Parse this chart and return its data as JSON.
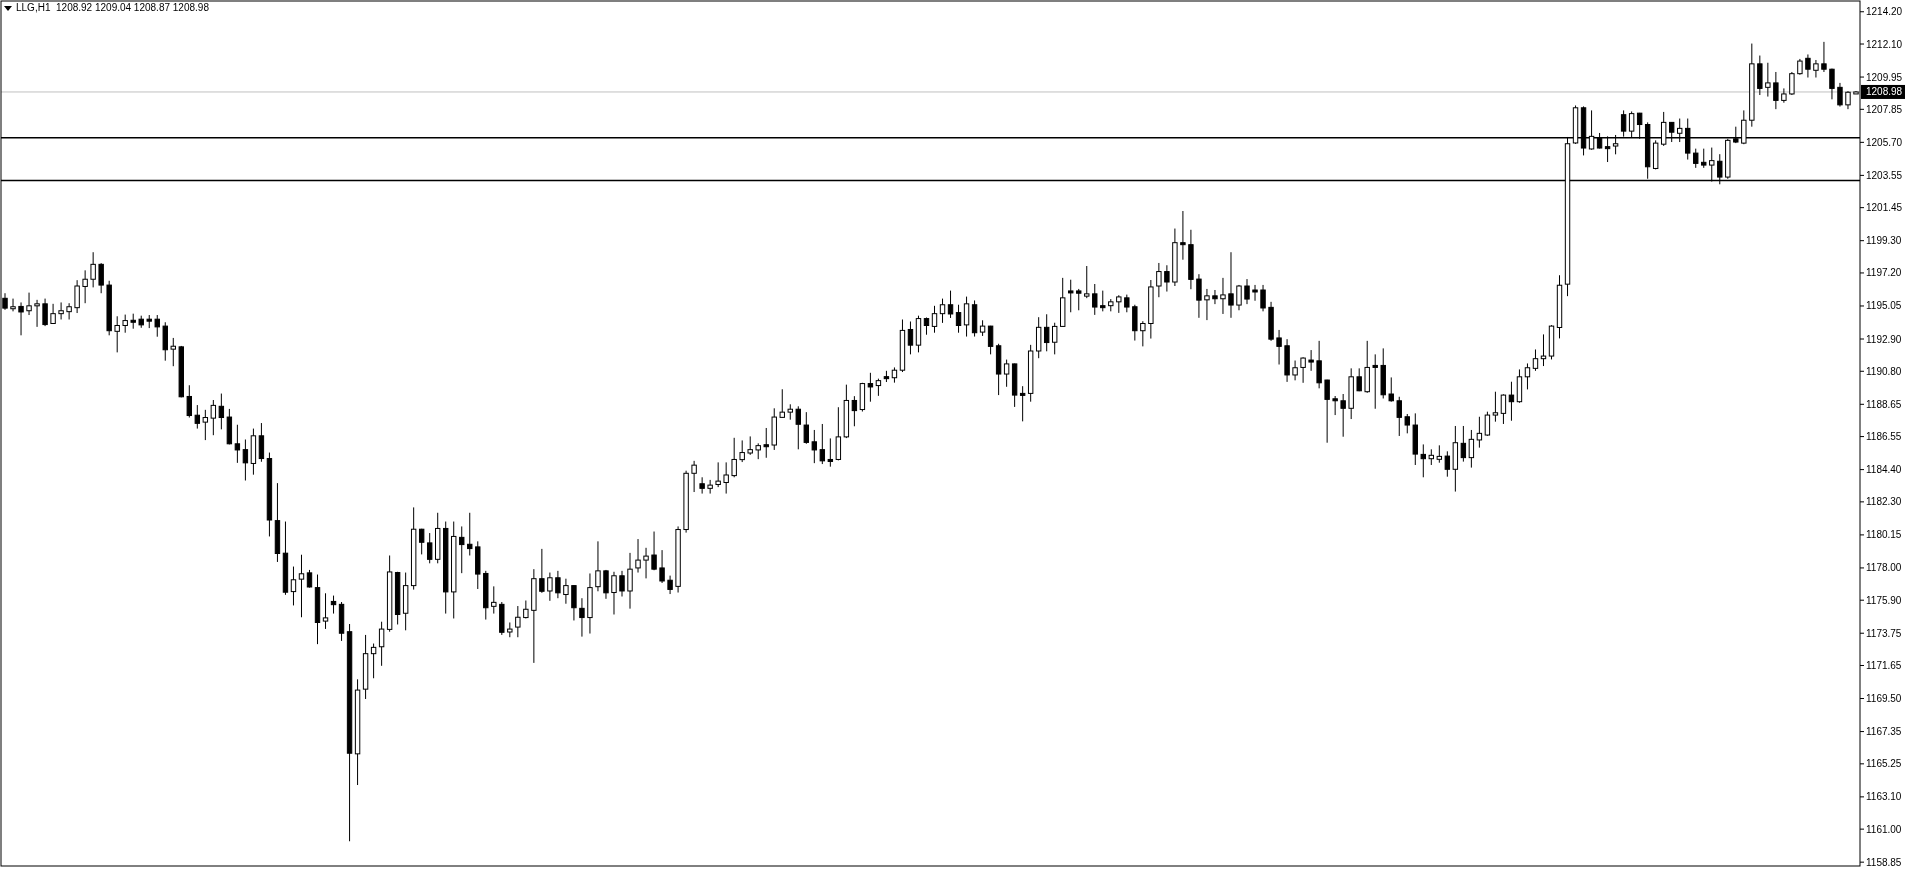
{
  "chart_data": {
    "type": "candlestick",
    "title": "LLG,H1  1208.92 1209.04 1208.87 1208.98",
    "color": "#000000",
    "categories": [
      null,
      null,
      null,
      null,
      null,
      null,
      null,
      null,
      null,
      null,
      null,
      null,
      null,
      null,
      null,
      null,
      null,
      null,
      null,
      null,
      null,
      null,
      null,
      null,
      null,
      null,
      null,
      null,
      null,
      null,
      null,
      null,
      null,
      null,
      null,
      null,
      null,
      null,
      null,
      null,
      null,
      null,
      null,
      null,
      null,
      null,
      null,
      null,
      null,
      null,
      null,
      null,
      null,
      null,
      null,
      null,
      null,
      null,
      null,
      null,
      null,
      null,
      null,
      null,
      null,
      null,
      null,
      null,
      null,
      null,
      null,
      null,
      null,
      null,
      null,
      null,
      null,
      null,
      null,
      null,
      null,
      null,
      null,
      null,
      null,
      null,
      null,
      null,
      null,
      null,
      null,
      null,
      null,
      null,
      null,
      null,
      null,
      null,
      null,
      null,
      null,
      null,
      null,
      null,
      null,
      null,
      null,
      null,
      null,
      null,
      null,
      null,
      null,
      null,
      null,
      null,
      null,
      null,
      null,
      null,
      null,
      null,
      null,
      null,
      null,
      null,
      null,
      null,
      null,
      null,
      null,
      null,
      null,
      null,
      null,
      null,
      null,
      null,
      null,
      null,
      null,
      null,
      null,
      null,
      null,
      null,
      null,
      null,
      null,
      null,
      null,
      null,
      null,
      null,
      null,
      null,
      null,
      null,
      null,
      null,
      null,
      null,
      null,
      null,
      null,
      null,
      null,
      null,
      null,
      null,
      null,
      null,
      null,
      null,
      null,
      null,
      null,
      null,
      null,
      null,
      null,
      null,
      null,
      null,
      null,
      null,
      null,
      null,
      null,
      null,
      null,
      null,
      null,
      null,
      null,
      null,
      null,
      null,
      null,
      null,
      null,
      null,
      null,
      null,
      null,
      null,
      null,
      null,
      null,
      null,
      null,
      null,
      null,
      null,
      null,
      null,
      null,
      null,
      null,
      null,
      null,
      null,
      null,
      null,
      null,
      null,
      null,
      null,
      null,
      null,
      null,
      null
    ],
    "ohlc": [
      [
        1195.55,
        1195.88,
        1194.8,
        1194.91
      ],
      [
        1194.98,
        1195.53,
        1194.7,
        1195.0
      ],
      [
        1195.02,
        1195.28,
        1193.14,
        1194.66
      ],
      [
        1194.74,
        1195.92,
        1194.46,
        1195.06
      ],
      [
        1195.06,
        1195.45,
        1193.69,
        1195.19
      ],
      [
        1195.19,
        1195.53,
        1193.74,
        1193.84
      ],
      [
        1193.91,
        1195.19,
        1193.91,
        1194.55
      ],
      [
        1194.55,
        1195.28,
        1194.17,
        1194.74
      ],
      [
        1194.68,
        1195.23,
        1194.17,
        1195.0
      ],
      [
        1194.94,
        1196.73,
        1194.59,
        1196.35
      ],
      [
        1196.32,
        1197.37,
        1195.23,
        1196.79
      ],
      [
        1196.79,
        1198.55,
        1196.26,
        1197.76
      ],
      [
        1197.76,
        1197.84,
        1195.88,
        1196.41
      ],
      [
        1196.41,
        1196.69,
        1193.14,
        1193.44
      ],
      [
        1193.4,
        1194.38,
        1192.03,
        1193.78
      ],
      [
        1193.78,
        1194.49,
        1193.31,
        1194.1
      ],
      [
        1194.12,
        1194.55,
        1193.57,
        1194.1
      ],
      [
        1194.19,
        1194.42,
        1193.63,
        1193.82
      ],
      [
        1194.19,
        1194.46,
        1193.61,
        1194.17
      ],
      [
        1194.19,
        1194.46,
        1193.05,
        1193.69
      ],
      [
        1193.74,
        1193.99,
        1191.49,
        1192.2
      ],
      [
        1192.24,
        1192.97,
        1191.13,
        1192.43
      ],
      [
        1192.39,
        1192.45,
        1189.1,
        1189.14
      ],
      [
        1189.16,
        1189.89,
        1187.79,
        1187.92
      ],
      [
        1187.94,
        1188.6,
        1187.07,
        1187.41
      ],
      [
        1187.49,
        1188.29,
        1186.32,
        1187.79
      ],
      [
        1187.75,
        1188.93,
        1186.64,
        1188.58
      ],
      [
        1188.52,
        1189.35,
        1187.02,
        1187.79
      ],
      [
        1187.82,
        1188.35,
        1186.04,
        1186.08
      ],
      [
        1186.08,
        1187.32,
        1184.84,
        1185.68
      ],
      [
        1185.7,
        1186.36,
        1183.69,
        1184.84
      ],
      [
        1184.8,
        1187.07,
        1184.07,
        1186.6
      ],
      [
        1186.6,
        1187.43,
        1184.91,
        1185.12
      ],
      [
        1185.12,
        1185.51,
        1180.05,
        1181.12
      ],
      [
        1181.08,
        1183.52,
        1178.39,
        1178.94
      ],
      [
        1178.96,
        1181.02,
        1176.25,
        1176.42
      ],
      [
        1176.46,
        1178.09,
        1175.56,
        1177.23
      ],
      [
        1177.27,
        1178.86,
        1174.79,
        1177.62
      ],
      [
        1177.68,
        1177.87,
        1176.72,
        1176.76
      ],
      [
        1176.72,
        1177.57,
        1173.04,
        1174.45
      ],
      [
        1174.54,
        1176.35,
        1174.03,
        1174.75
      ],
      [
        1175.82,
        1176.2,
        1175.03,
        1175.61
      ],
      [
        1175.63,
        1175.78,
        1173.25,
        1173.75
      ],
      [
        1173.85,
        1174.35,
        1160.21,
        1165.94
      ],
      [
        1165.9,
        1170.75,
        1163.87,
        1170.05
      ],
      [
        1170.11,
        1173.64,
        1169.47,
        1172.42
      ],
      [
        1172.42,
        1173.08,
        1170.82,
        1172.83
      ],
      [
        1172.87,
        1174.5,
        1171.63,
        1174.02
      ],
      [
        1174.0,
        1178.81,
        1173.85,
        1177.74
      ],
      [
        1177.7,
        1177.75,
        1174.32,
        1174.97
      ],
      [
        1175.05,
        1177.7,
        1173.94,
        1176.85
      ],
      [
        1176.85,
        1181.94,
        1176.59,
        1180.52
      ],
      [
        1180.52,
        1180.55,
        1178.88,
        1179.67
      ],
      [
        1179.63,
        1180.27,
        1178.3,
        1178.56
      ],
      [
        1178.56,
        1181.59,
        1178.3,
        1180.57
      ],
      [
        1180.57,
        1181.02,
        1175.03,
        1176.44
      ],
      [
        1176.44,
        1181.02,
        1174.71,
        1180.05
      ],
      [
        1179.99,
        1180.7,
        1177.66,
        1179.52
      ],
      [
        1179.54,
        1181.59,
        1178.81,
        1179.26
      ],
      [
        1179.37,
        1179.73,
        1176.63,
        1177.6
      ],
      [
        1177.64,
        1177.81,
        1174.64,
        1175.41
      ],
      [
        1175.5,
        1176.8,
        1175.03,
        1175.76
      ],
      [
        1175.63,
        1175.78,
        1173.64,
        1173.81
      ],
      [
        1173.83,
        1174.45,
        1173.49,
        1174.02
      ],
      [
        1174.15,
        1175.52,
        1173.49,
        1174.79
      ],
      [
        1174.77,
        1175.88,
        1174.71,
        1175.31
      ],
      [
        1175.24,
        1177.92,
        1171.82,
        1177.3
      ],
      [
        1177.3,
        1179.24,
        1176.38,
        1176.48
      ],
      [
        1176.5,
        1177.7,
        1175.86,
        1177.36
      ],
      [
        1177.36,
        1177.81,
        1176.03,
        1176.38
      ],
      [
        1176.27,
        1177.3,
        1175.67,
        1176.85
      ],
      [
        1176.85,
        1176.88,
        1174.58,
        1175.41
      ],
      [
        1175.37,
        1176.03,
        1173.53,
        1174.77
      ],
      [
        1174.77,
        1177.64,
        1173.73,
        1176.72
      ],
      [
        1176.78,
        1179.73,
        1176.48,
        1177.81
      ],
      [
        1177.81,
        1177.87,
        1175.99,
        1176.38
      ],
      [
        1176.4,
        1177.75,
        1174.97,
        1177.49
      ],
      [
        1177.49,
        1177.81,
        1176.14,
        1176.5
      ],
      [
        1176.5,
        1178.98,
        1175.35,
        1177.92
      ],
      [
        1178.0,
        1179.88,
        1177.7,
        1178.51
      ],
      [
        1178.51,
        1179.31,
        1177.32,
        1178.77
      ],
      [
        1178.84,
        1180.37,
        1177.85,
        1177.92
      ],
      [
        1178.0,
        1179.16,
        1177.02,
        1177.15
      ],
      [
        1177.2,
        1177.5,
        1176.3,
        1176.6
      ],
      [
        1176.8,
        1180.7,
        1176.4,
        1180.5
      ],
      [
        1180.5,
        1184.33,
        1180.3,
        1184.16
      ],
      [
        1184.16,
        1184.97,
        1182.94,
        1184.69
      ],
      [
        1183.48,
        1183.9,
        1182.84,
        1183.18
      ],
      [
        1183.18,
        1183.73,
        1182.84,
        1183.39
      ],
      [
        1183.43,
        1184.87,
        1183.26,
        1183.65
      ],
      [
        1183.56,
        1184.87,
        1182.84,
        1184.05
      ],
      [
        1184.01,
        1186.47,
        1183.9,
        1185.06
      ],
      [
        1185.05,
        1186.3,
        1184.89,
        1185.51
      ],
      [
        1185.48,
        1186.56,
        1185.36,
        1185.7
      ],
      [
        1185.68,
        1186.11,
        1185.08,
        1185.96
      ],
      [
        1186.02,
        1187.11,
        1185.17,
        1185.94
      ],
      [
        1186.0,
        1188.39,
        1185.68,
        1187.82
      ],
      [
        1187.8,
        1189.63,
        1187.78,
        1188.14
      ],
      [
        1188.14,
        1188.65,
        1187.65,
        1188.33
      ],
      [
        1188.33,
        1188.52,
        1185.72,
        1187.35
      ],
      [
        1187.3,
        1188.14,
        1186.08,
        1186.17
      ],
      [
        1186.21,
        1186.98,
        1184.82,
        1185.68
      ],
      [
        1185.7,
        1187.37,
        1184.76,
        1184.97
      ],
      [
        1185.06,
        1186.43,
        1184.59,
        1184.97
      ],
      [
        1185.06,
        1188.46,
        1185.0,
        1186.53
      ],
      [
        1186.53,
        1189.93,
        1186.45,
        1188.9
      ],
      [
        1188.9,
        1189.18,
        1187.22,
        1188.24
      ],
      [
        1188.31,
        1190.05,
        1188.18,
        1190.0
      ],
      [
        1190.0,
        1190.7,
        1188.82,
        1189.78
      ],
      [
        1189.87,
        1190.32,
        1189.2,
        1190.19
      ],
      [
        1190.45,
        1190.83,
        1190.1,
        1190.36
      ],
      [
        1190.38,
        1191.05,
        1190.06,
        1190.87
      ],
      [
        1190.87,
        1194.17,
        1190.75,
        1193.46
      ],
      [
        1193.52,
        1194.04,
        1191.9,
        1192.5
      ],
      [
        1192.5,
        1194.42,
        1192.03,
        1194.23
      ],
      [
        1194.23,
        1194.3,
        1193.18,
        1193.78
      ],
      [
        1193.72,
        1195.06,
        1193.31,
        1194.55
      ],
      [
        1194.55,
        1195.53,
        1193.95,
        1195.13
      ],
      [
        1195.13,
        1196.05,
        1194.27,
        1194.53
      ],
      [
        1194.62,
        1195.13,
        1193.31,
        1193.78
      ],
      [
        1193.82,
        1195.66,
        1193.06,
        1195.19
      ],
      [
        1195.13,
        1195.41,
        1193.06,
        1193.31
      ],
      [
        1193.35,
        1194.12,
        1193.1,
        1193.74
      ],
      [
        1193.74,
        1193.76,
        1191.9,
        1192.42
      ],
      [
        1192.46,
        1192.59,
        1189.25,
        1190.62
      ],
      [
        1190.62,
        1191.56,
        1189.79,
        1191.28
      ],
      [
        1191.28,
        1191.3,
        1188.48,
        1189.25
      ],
      [
        1189.36,
        1189.83,
        1187.54,
        1189.27
      ],
      [
        1189.36,
        1192.52,
        1188.82,
        1192.12
      ],
      [
        1192.12,
        1194.32,
        1191.65,
        1193.66
      ],
      [
        1193.66,
        1194.51,
        1192.1,
        1192.67
      ],
      [
        1192.69,
        1193.96,
        1191.9,
        1193.72
      ],
      [
        1193.72,
        1196.88,
        1193.7,
        1195.58
      ],
      [
        1196.03,
        1196.76,
        1194.64,
        1195.94
      ],
      [
        1196.03,
        1196.16,
        1194.77,
        1195.88
      ],
      [
        1195.69,
        1197.65,
        1195.56,
        1195.84
      ],
      [
        1195.84,
        1196.48,
        1194.47,
        1194.98
      ],
      [
        1195.07,
        1196.05,
        1194.7,
        1194.98
      ],
      [
        1195.07,
        1195.5,
        1194.7,
        1195.32
      ],
      [
        1195.32,
        1195.75,
        1194.6,
        1195.64
      ],
      [
        1195.58,
        1195.79,
        1194.64,
        1194.98
      ],
      [
        1195.0,
        1195.13,
        1192.8,
        1193.44
      ],
      [
        1193.44,
        1194.06,
        1192.42,
        1193.91
      ],
      [
        1193.91,
        1196.74,
        1192.93,
        1196.29
      ],
      [
        1196.35,
        1197.85,
        1195.62,
        1197.29
      ],
      [
        1197.29,
        1197.7,
        1195.99,
        1196.61
      ],
      [
        1196.61,
        1200.09,
        1196.35,
        1199.17
      ],
      [
        1199.17,
        1201.23,
        1198.06,
        1199.04
      ],
      [
        1199.04,
        1200.01,
        1196.14,
        1196.78
      ],
      [
        1196.8,
        1197.12,
        1194.28,
        1195.43
      ],
      [
        1195.45,
        1196.16,
        1194.13,
        1195.71
      ],
      [
        1195.71,
        1196.09,
        1195.17,
        1195.52
      ],
      [
        1195.52,
        1196.88,
        1194.53,
        1195.77
      ],
      [
        1195.84,
        1198.55,
        1194.28,
        1195.11
      ],
      [
        1195.11,
        1196.42,
        1194.77,
        1196.35
      ],
      [
        1196.35,
        1196.8,
        1195.17,
        1195.5
      ],
      [
        1196.09,
        1196.42,
        1195.39,
        1196.01
      ],
      [
        1196.09,
        1196.42,
        1194.7,
        1194.92
      ],
      [
        1194.96,
        1195.32,
        1192.78,
        1192.89
      ],
      [
        1192.97,
        1193.49,
        1191.24,
        1192.42
      ],
      [
        1192.46,
        1192.89,
        1190.11,
        1190.56
      ],
      [
        1190.56,
        1191.5,
        1190.21,
        1191.03
      ],
      [
        1191.05,
        1191.71,
        1190.05,
        1191.66
      ],
      [
        1191.53,
        1192.18,
        1190.83,
        1191.5
      ],
      [
        1191.48,
        1192.78,
        1189.69,
        1190.05
      ],
      [
        1190.23,
        1190.25,
        1186.15,
        1188.97
      ],
      [
        1189.01,
        1189.19,
        1187.95,
        1188.88
      ],
      [
        1188.88,
        1189.32,
        1186.54,
        1188.39
      ],
      [
        1188.39,
        1190.99,
        1187.69,
        1190.44
      ],
      [
        1190.44,
        1190.99,
        1189.5,
        1189.53
      ],
      [
        1189.47,
        1192.78,
        1189.4,
        1191.05
      ],
      [
        1191.18,
        1191.9,
        1188.36,
        1191.09
      ],
      [
        1191.18,
        1192.29,
        1189.03,
        1189.27
      ],
      [
        1189.32,
        1190.4,
        1188.82,
        1188.88
      ],
      [
        1188.88,
        1189.14,
        1186.59,
        1187.8
      ],
      [
        1187.84,
        1188.02,
        1186.76,
        1187.3
      ],
      [
        1187.3,
        1188.06,
        1184.7,
        1185.41
      ],
      [
        1185.39,
        1186.04,
        1183.9,
        1185.11
      ],
      [
        1185.11,
        1185.72,
        1184.7,
        1185.33
      ],
      [
        1185.07,
        1185.98,
        1184.85,
        1185.26
      ],
      [
        1185.28,
        1185.59,
        1183.94,
        1184.42
      ],
      [
        1184.42,
        1187.24,
        1182.97,
        1186.15
      ],
      [
        1186.11,
        1187.24,
        1184.92,
        1185.18
      ],
      [
        1185.18,
        1186.98,
        1184.53,
        1186.37
      ],
      [
        1186.33,
        1187.84,
        1185.83,
        1186.76
      ],
      [
        1186.65,
        1188.17,
        1186.6,
        1187.95
      ],
      [
        1187.95,
        1189.47,
        1187.52,
        1188.1
      ],
      [
        1188.06,
        1189.3,
        1187.37,
        1189.25
      ],
      [
        1189.25,
        1190.12,
        1187.58,
        1188.82
      ],
      [
        1188.82,
        1190.92,
        1188.75,
        1190.44
      ],
      [
        1190.44,
        1191.31,
        1189.62,
        1191.03
      ],
      [
        1190.99,
        1192.22,
        1190.83,
        1191.62
      ],
      [
        1191.62,
        1193.2,
        1191.14,
        1191.79
      ],
      [
        1191.79,
        1193.8,
        1191.57,
        1193.74
      ],
      [
        1193.65,
        1197.05,
        1192.94,
        1196.4
      ],
      [
        1196.47,
        1206.05,
        1195.69,
        1205.61
      ],
      [
        1205.66,
        1208.1,
        1205.6,
        1207.95
      ],
      [
        1207.95,
        1208.04,
        1204.85,
        1205.33
      ],
      [
        1205.27,
        1207.78,
        1205.22,
        1206.09
      ],
      [
        1206.0,
        1206.31,
        1205.3,
        1205.33
      ],
      [
        1205.42,
        1206.09,
        1204.42,
        1205.4
      ],
      [
        1205.46,
        1206.18,
        1204.92,
        1205.61
      ],
      [
        1207.5,
        1207.78,
        1206.07,
        1206.43
      ],
      [
        1206.43,
        1207.71,
        1206.0,
        1207.57
      ],
      [
        1207.6,
        1207.62,
        1205.93,
        1206.86
      ],
      [
        1206.86,
        1207.0,
        1203.33,
        1204.11
      ],
      [
        1204.0,
        1205.83,
        1203.94,
        1205.65
      ],
      [
        1205.58,
        1207.68,
        1205.47,
        1207.0
      ],
      [
        1207.0,
        1207.02,
        1205.72,
        1206.36
      ],
      [
        1206.29,
        1207.25,
        1205.72,
        1206.61
      ],
      [
        1206.61,
        1207.25,
        1204.58,
        1205.0
      ],
      [
        1205.0,
        1205.29,
        1204.04,
        1204.33
      ],
      [
        1204.4,
        1205.29,
        1204.04,
        1204.22
      ],
      [
        1204.22,
        1205.36,
        1203.15,
        1204.51
      ],
      [
        1204.47,
        1204.93,
        1202.97,
        1203.44
      ],
      [
        1203.44,
        1205.93,
        1203.33,
        1205.83
      ],
      [
        1205.93,
        1206.72,
        1205.65,
        1205.72
      ],
      [
        1205.65,
        1207.78,
        1205.58,
        1207.14
      ],
      [
        1207.14,
        1212.13,
        1206.72,
        1210.81
      ],
      [
        1210.81,
        1211.35,
        1208.78,
        1209.21
      ],
      [
        1209.28,
        1210.88,
        1208.68,
        1209.57
      ],
      [
        1209.57,
        1210.28,
        1207.86,
        1208.43
      ],
      [
        1208.43,
        1209.21,
        1208.28,
        1208.85
      ],
      [
        1208.85,
        1210.28,
        1208.78,
        1210.17
      ],
      [
        1210.17,
        1211.13,
        1210.1,
        1210.99
      ],
      [
        1211.17,
        1211.42,
        1209.92,
        1210.46
      ],
      [
        1210.39,
        1211.06,
        1209.92,
        1210.81
      ],
      [
        1210.81,
        1212.24,
        1210.28,
        1210.46
      ],
      [
        1210.46,
        1210.5,
        1208.5,
        1209.21
      ],
      [
        1209.28,
        1209.57,
        1208.03,
        1208.14
      ],
      [
        1208.14,
        1209.03,
        1207.86,
        1208.96
      ],
      [
        1208.92,
        1209.04,
        1208.87,
        1208.98
      ]
    ],
    "ylim": [
      1158.6,
      1214.9
    ],
    "yticks": [
      {
        "value": 1158.85,
        "label": "1158.85"
      },
      {
        "value": 1161,
        "label": "1161.00"
      },
      {
        "value": 1163.1,
        "label": "1163.10"
      },
      1165.25,
      1167.35,
      {
        "value": 1169.5,
        "label": "1169.50"
      },
      1171.65,
      1173.75,
      {
        "value": 1175.9,
        "label": "1175.90"
      },
      {
        "value": 1178,
        "label": "1178.00"
      },
      1180.15,
      {
        "value": 1182.3,
        "label": "1182.30"
      },
      {
        "value": 1184.4,
        "label": "1184.40"
      },
      1186.55,
      1188.65,
      {
        "value": 1190.8,
        "label": "1190.80"
      },
      {
        "value": 1192.9,
        "label": "1192.90"
      },
      1195.05,
      {
        "value": 1197.2,
        "label": "1197.20"
      },
      {
        "value": 1199.3,
        "label": "1199.30"
      },
      1201.45,
      1203.55,
      {
        "value": 1205.7,
        "label": "1205.70"
      },
      1207.85,
      1209.95,
      {
        "value": 1212.1,
        "label": "1212.10"
      },
      {
        "value": 1214.2,
        "label": "1214.20"
      }
    ],
    "ref_lines": [
      {
        "axis": "y",
        "value": 1208.98,
        "label": "1208.98",
        "color": "#c0c0c0"
      },
      {
        "axis": "y",
        "value": 1206.0,
        "color": "#000000"
      },
      {
        "axis": "y",
        "value": 1203.22,
        "color": "#000000"
      }
    ],
    "tick_labels": "y"
  }
}
